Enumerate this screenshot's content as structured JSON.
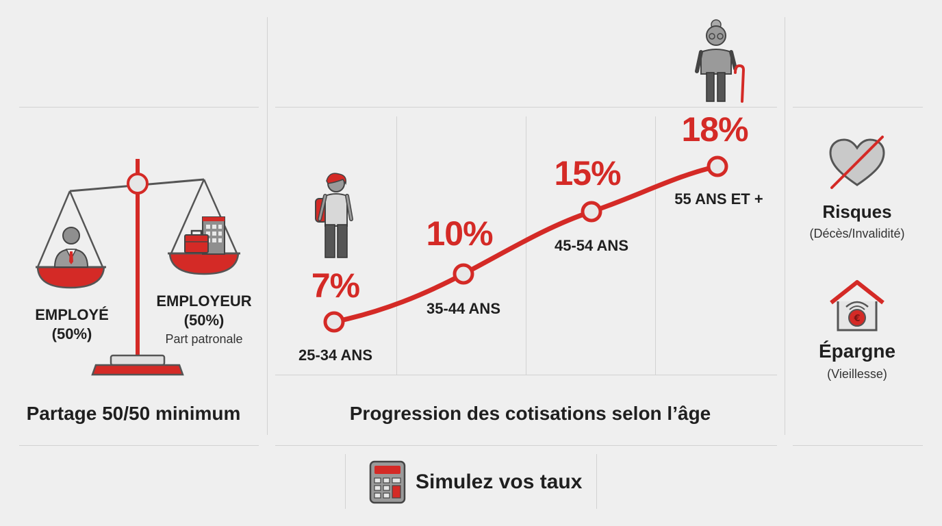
{
  "balance": {
    "employee_label": "EMPLOYÉ",
    "employee_share": "(50%)",
    "employer_label": "EMPLOYEUR",
    "employer_share": "(50%)",
    "employer_note": "Part patronale",
    "caption": "Partage 50/50 minimum"
  },
  "progression": {
    "caption": "Progression des cotisations selon l’âge",
    "steps": [
      {
        "age": "25-34 ANS",
        "rate": "7%"
      },
      {
        "age": "35-44 ANS",
        "rate": "10%"
      },
      {
        "age": "45-54 ANS",
        "rate": "15%"
      },
      {
        "age": "55 ANS ET +",
        "rate": "18%"
      }
    ]
  },
  "coverage": {
    "risks_title": "Risques",
    "risks_sub": "(Décès/Invalidité)",
    "savings_title": "Épargne",
    "savings_sub": "(Vieillesse)"
  },
  "cta": {
    "label": "Simulez vos taux"
  },
  "icons": {
    "balance": "scale-icon",
    "employee": "employee-icon",
    "employer": "office-building-icon",
    "young": "young-person-icon",
    "senior": "senior-person-icon",
    "risks": "crossed-heart-icon",
    "savings": "house-piggy-bank-icon",
    "calculator": "calculator-icon"
  },
  "colors": {
    "accent": "#d42a26",
    "gray": "#8f8f8f",
    "dark": "#4a4a4a"
  }
}
